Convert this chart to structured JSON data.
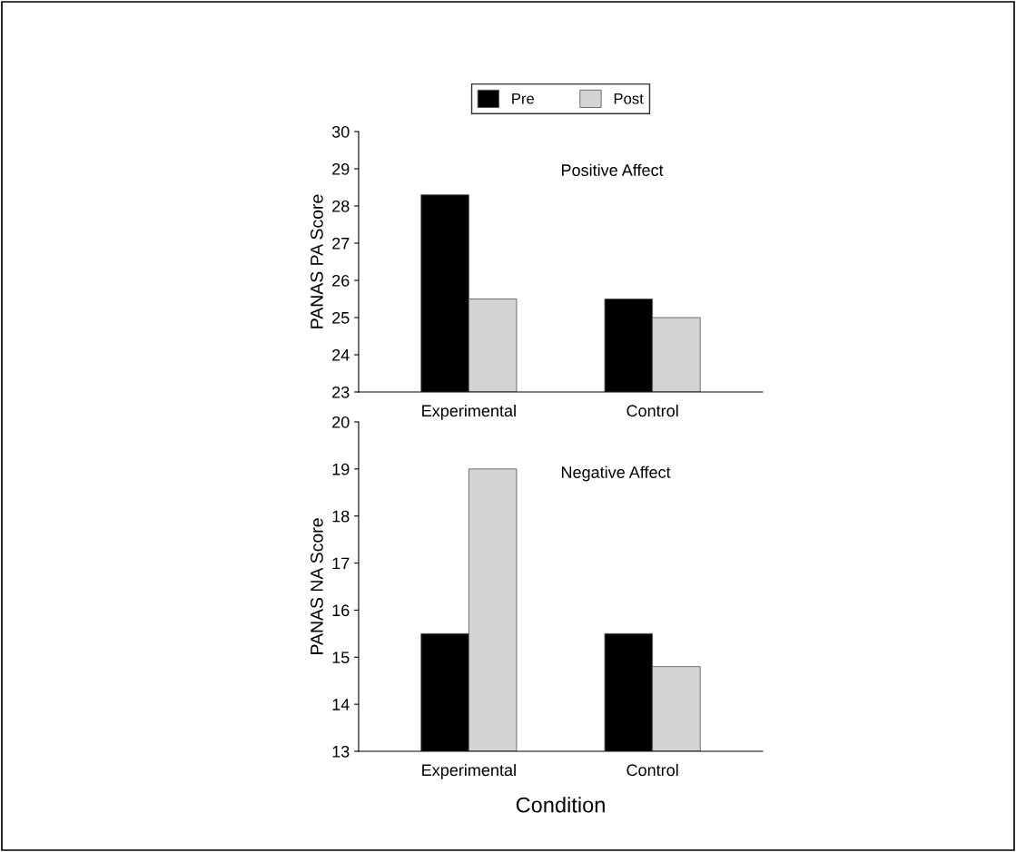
{
  "chart_data": [
    {
      "type": "bar",
      "ylabel": "PANAS PA Score",
      "annotations": [
        "Positive Affect"
      ],
      "categories": [
        "Experimental",
        "Control"
      ],
      "series": [
        {
          "name": "Pre",
          "color": "#000000",
          "values": [
            28.3,
            25.5
          ]
        },
        {
          "name": "Post",
          "color": "#d4d4d4",
          "values": [
            25.5,
            25.0
          ]
        }
      ],
      "ylim": [
        23,
        30
      ],
      "yticks": [
        23,
        24,
        25,
        26,
        27,
        28,
        29,
        30
      ],
      "legend": "top",
      "grid": false
    },
    {
      "type": "bar",
      "xlabel": "Condition",
      "ylabel": "PANAS NA Score",
      "annotations": [
        "Negative Affect"
      ],
      "categories": [
        "Experimental",
        "Control"
      ],
      "series": [
        {
          "color": "#000000",
          "values": [
            15.5,
            15.5
          ]
        },
        {
          "color": "#d4d4d4",
          "values": [
            19.0,
            14.8
          ]
        }
      ],
      "ylim": [
        13,
        20
      ],
      "yticks": [
        13,
        14,
        15,
        16,
        17,
        18,
        19,
        20
      ],
      "grid": false
    }
  ]
}
